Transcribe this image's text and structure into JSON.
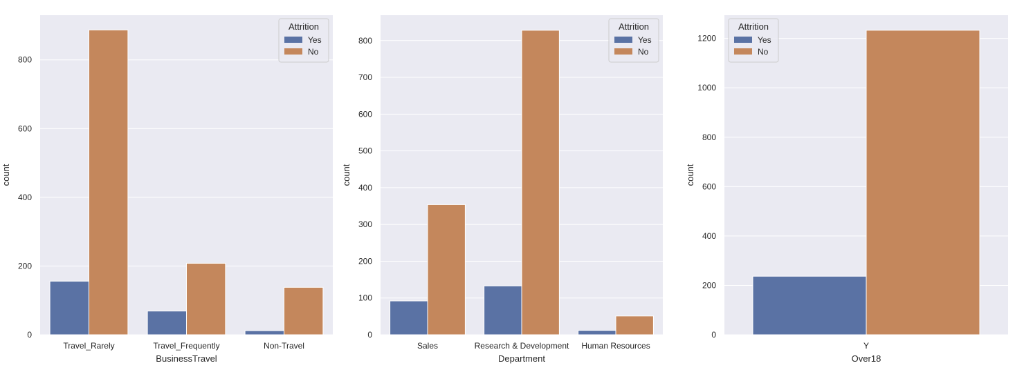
{
  "colors": {
    "panel_bg": "#eaeaf2",
    "grid": "#ffffff",
    "yes": "#5a72a4",
    "no": "#c4875c",
    "text": "#262626"
  },
  "chart_data": [
    {
      "type": "bar",
      "xlabel": "BusinessTravel",
      "ylabel": "count",
      "categories": [
        "Travel_Rarely",
        "Travel_Frequently",
        "Non-Travel"
      ],
      "series": [
        {
          "name": "Yes",
          "values": [
            156,
            69,
            12
          ]
        },
        {
          "name": "No",
          "values": [
            887,
            208,
            138
          ]
        }
      ],
      "ylim": [
        0,
        930
      ],
      "yticks": [
        0,
        200,
        400,
        600,
        800
      ],
      "legend": {
        "title": "Attrition",
        "placement": "top-right"
      },
      "grid": true
    },
    {
      "type": "bar",
      "xlabel": "Department",
      "ylabel": "count",
      "categories": [
        "Sales",
        "Research & Development",
        "Human Resources"
      ],
      "series": [
        {
          "name": "Yes",
          "values": [
            92,
            133,
            12
          ]
        },
        {
          "name": "No",
          "values": [
            354,
            828,
            51
          ]
        }
      ],
      "ylim": [
        0,
        869
      ],
      "yticks": [
        0,
        100,
        200,
        300,
        400,
        500,
        600,
        700,
        800
      ],
      "legend": {
        "title": "Attrition",
        "placement": "top-right"
      },
      "grid": true
    },
    {
      "type": "bar",
      "xlabel": "Over18",
      "ylabel": "count",
      "categories": [
        "Y"
      ],
      "series": [
        {
          "name": "Yes",
          "values": [
            237
          ]
        },
        {
          "name": "No",
          "values": [
            1233
          ]
        }
      ],
      "ylim": [
        0,
        1294
      ],
      "yticks": [
        0,
        200,
        400,
        600,
        800,
        1000,
        1200
      ],
      "legend": {
        "title": "Attrition",
        "placement": "top-left"
      },
      "grid": true
    }
  ]
}
